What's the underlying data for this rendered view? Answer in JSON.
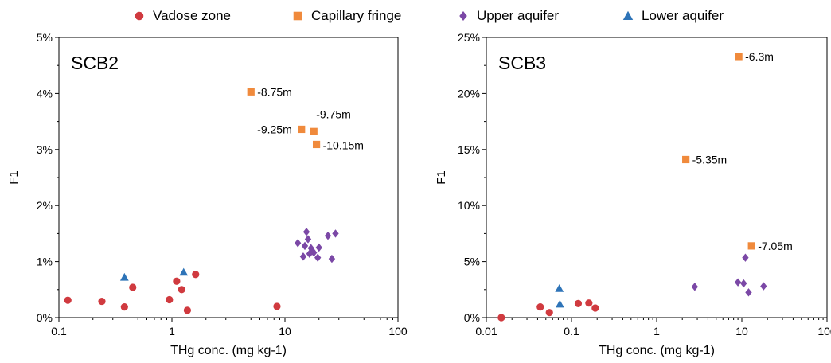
{
  "legend": {
    "items": [
      {
        "label": "Vadose zone",
        "marker": "circle",
        "color": "#d03a3f"
      },
      {
        "label": "Capillary fringe",
        "marker": "square",
        "color": "#f08a3c"
      },
      {
        "label": "Upper aquifer",
        "marker": "diamond",
        "color": "#7b48a6"
      },
      {
        "label": "Lower aquifer",
        "marker": "triangle",
        "color": "#2e74b8"
      }
    ]
  },
  "chart_data": [
    {
      "type": "scatter",
      "panel_label": "SCB2",
      "ylabel": "F1",
      "xlabel": "THg conc. (mg kg-1)",
      "xscale": "log",
      "xlim": [
        0.1,
        100
      ],
      "ylim": [
        0,
        5
      ],
      "xticks": [
        0.1,
        1,
        10,
        100
      ],
      "xtick_labels": [
        "0.1",
        "1",
        "10",
        "100"
      ],
      "yticks": [
        0,
        1,
        2,
        3,
        4,
        5
      ],
      "ytick_labels": [
        "0%",
        "1%",
        "2%",
        "3%",
        "4%",
        "5%"
      ],
      "series": [
        {
          "name": "Vadose zone",
          "x": [
            0.12,
            0.24,
            0.38,
            0.45,
            0.95,
            1.1,
            1.22,
            1.37,
            1.62,
            8.5
          ],
          "y": [
            0.31,
            0.29,
            0.19,
            0.54,
            0.32,
            0.65,
            0.5,
            0.13,
            0.77,
            0.2
          ]
        },
        {
          "name": "Capillary fringe",
          "x": [
            5.0,
            14.0,
            18.0,
            19.0
          ],
          "y": [
            4.03,
            3.36,
            3.32,
            3.09
          ],
          "point_labels": [
            "-8.75m",
            "-9.25m",
            "-9.75m",
            "-10.15m"
          ]
        },
        {
          "name": "Upper aquifer",
          "x": [
            13.0,
            14.5,
            15.0,
            15.5,
            16.0,
            16.5,
            17.0,
            17.5,
            18.0,
            19.5,
            20.0,
            24.0,
            26.0,
            28.0
          ],
          "y": [
            1.33,
            1.09,
            1.28,
            1.53,
            1.4,
            1.14,
            1.24,
            1.19,
            1.16,
            1.07,
            1.25,
            1.46,
            1.05,
            1.5
          ]
        },
        {
          "name": "Lower aquifer",
          "x": [
            0.38,
            1.27
          ],
          "y": [
            0.72,
            0.81
          ]
        }
      ]
    },
    {
      "type": "scatter",
      "panel_label": "SCB3",
      "ylabel": "F1",
      "xlabel": "THg conc. (mg kg-1)",
      "xscale": "log",
      "xlim": [
        0.01,
        100
      ],
      "ylim": [
        0,
        25
      ],
      "xticks": [
        0.01,
        0.1,
        1,
        10,
        100
      ],
      "xtick_labels": [
        "0.01",
        "0.1",
        "1",
        "10",
        "100"
      ],
      "yticks": [
        0,
        5,
        10,
        15,
        20,
        25
      ],
      "ytick_labels": [
        "0%",
        "5%",
        "10%",
        "15%",
        "20%",
        "25%"
      ],
      "series": [
        {
          "name": "Vadose zone",
          "x": [
            0.015,
            0.043,
            0.055,
            0.12,
            0.16,
            0.19
          ],
          "y": [
            0.0,
            0.95,
            0.45,
            1.25,
            1.3,
            0.85
          ]
        },
        {
          "name": "Capillary fringe",
          "x": [
            2.2,
            9.2,
            13.0
          ],
          "y": [
            14.1,
            23.3,
            6.4
          ],
          "point_labels": [
            "-5.35m",
            "-6.3m",
            "-7.05m"
          ]
        },
        {
          "name": "Upper aquifer",
          "x": [
            2.8,
            9.0,
            10.5,
            11.0,
            12.0,
            18.0
          ],
          "y": [
            2.75,
            3.15,
            3.05,
            5.35,
            2.25,
            2.8
          ]
        },
        {
          "name": "Lower aquifer",
          "x": [
            0.072,
            0.073
          ],
          "y": [
            2.6,
            1.2
          ]
        }
      ]
    }
  ]
}
